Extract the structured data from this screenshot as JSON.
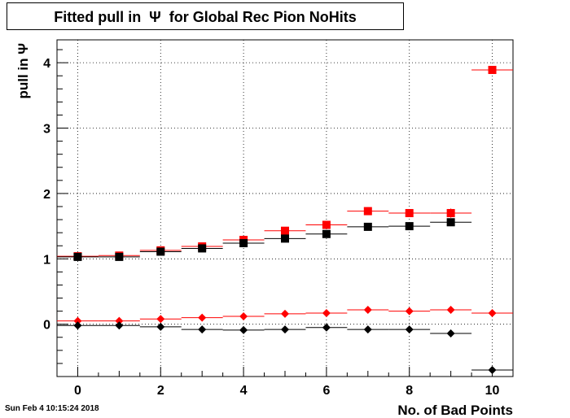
{
  "chart_data": {
    "type": "scatter",
    "title": "Fitted pull in  Ψ  for Global Rec Pion NoHits",
    "xlabel": "No. of Bad Points",
    "ylabel": "pull in  Ψ",
    "xlim": [
      -0.5,
      10.5
    ],
    "ylim": [
      -0.8,
      4.35
    ],
    "grid": true,
    "x_ticks": [
      0,
      2,
      4,
      6,
      8,
      10
    ],
    "y_ticks": [
      0,
      1,
      2,
      3,
      4
    ],
    "series": [
      {
        "marker": "square",
        "color": "#ff0000",
        "x": [
          0,
          1,
          2,
          3,
          4,
          5,
          6,
          7,
          8,
          9,
          10
        ],
        "y": [
          1.04,
          1.05,
          1.13,
          1.19,
          1.29,
          1.43,
          1.52,
          1.73,
          1.7,
          1.7,
          3.89
        ],
        "err": [
          0.02,
          0.02,
          0.02,
          0.02,
          0.03,
          0.03,
          0.04,
          0.06,
          0.06,
          0.07,
          0.03
        ]
      },
      {
        "marker": "square",
        "color": "#000000",
        "x": [
          0,
          1,
          2,
          3,
          4,
          5,
          6,
          7,
          8,
          9
        ],
        "y": [
          1.03,
          1.03,
          1.11,
          1.16,
          1.24,
          1.31,
          1.38,
          1.49,
          1.5,
          1.56
        ],
        "err": [
          0.02,
          0.02,
          0.02,
          0.02,
          0.03,
          0.03,
          0.03,
          0.04,
          0.04,
          0.05
        ]
      },
      {
        "marker": "diamond",
        "color": "#ff0000",
        "x": [
          0,
          1,
          2,
          3,
          4,
          5,
          6,
          7,
          8,
          9,
          10
        ],
        "y": [
          0.05,
          0.05,
          0.08,
          0.1,
          0.12,
          0.16,
          0.17,
          0.22,
          0.2,
          0.22,
          0.17
        ],
        "err": [
          0.01,
          0.01,
          0.01,
          0.01,
          0.01,
          0.02,
          0.02,
          0.02,
          0.03,
          0.04,
          0.02
        ]
      },
      {
        "marker": "diamond",
        "color": "#000000",
        "x": [
          0,
          1,
          2,
          3,
          4,
          5,
          6,
          7,
          8,
          9,
          10
        ],
        "y": [
          -0.02,
          -0.02,
          -0.04,
          -0.08,
          -0.09,
          -0.08,
          -0.05,
          -0.08,
          -0.08,
          -0.14,
          -0.7
        ],
        "err": [
          0.01,
          0.01,
          0.01,
          0.01,
          0.01,
          0.01,
          0.02,
          0.02,
          0.02,
          0.03,
          0.02
        ]
      }
    ]
  },
  "footer_text": "Sun Feb  4 10:15:24 2018"
}
